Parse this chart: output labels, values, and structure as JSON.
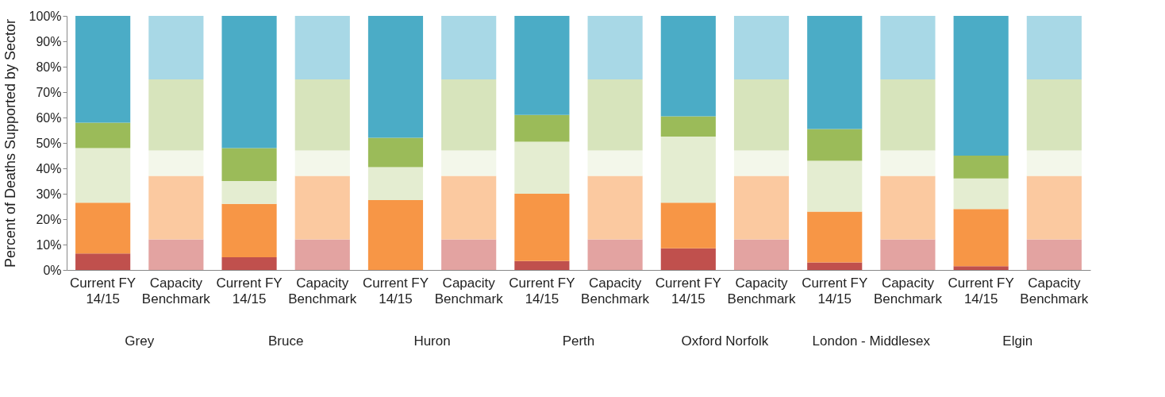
{
  "chart_data": {
    "type": "bar",
    "stacked": true,
    "ylabel": "Percent of Deaths Supported by Sector",
    "categories": [
      "Current FY 14/15",
      "Capacity Benchmark",
      "Current FY 14/15",
      "Capacity Benchmark",
      "Current FY 14/15",
      "Capacity Benchmark",
      "Current FY 14/15",
      "Capacity Benchmark",
      "Current FY 14/15",
      "Capacity Benchmark",
      "Current FY 14/15",
      "Capacity Benchmark",
      "Current FY 14/15",
      "Capacity Benchmark"
    ],
    "series": [
      {
        "colors": [
          "#c0504d",
          "#e3a3a1",
          "#c0504d",
          "#e3a3a1",
          "#c0504d",
          "#e3a3a1",
          "#c0504d",
          "#e3a3a1",
          "#c0504d",
          "#e3a3a1",
          "#c0504d",
          "#e3a3a1",
          "#c0504d",
          "#e3a3a1"
        ],
        "values": [
          6.5,
          12,
          5,
          12,
          0,
          12,
          3.5,
          12,
          8.5,
          12,
          3,
          12,
          1.5,
          12
        ]
      },
      {
        "colors": [
          "#f79646",
          "#fbc9a0",
          "#f79646",
          "#fbc9a0",
          "#f79646",
          "#fbc9a0",
          "#f79646",
          "#fbc9a0",
          "#f79646",
          "#fbc9a0",
          "#f79646",
          "#fbc9a0",
          "#f79646",
          "#fbc9a0"
        ],
        "values": [
          20,
          25,
          21,
          25,
          27.5,
          25,
          26.5,
          25,
          18,
          25,
          20,
          25,
          22.5,
          25
        ]
      },
      {
        "colors": [
          "#e4edd1",
          "#f3f7ea",
          "#e4edd1",
          "#f3f7ea",
          "#e4edd1",
          "#f3f7ea",
          "#e4edd1",
          "#f3f7ea",
          "#e4edd1",
          "#f3f7ea",
          "#e4edd1",
          "#f3f7ea",
          "#e4edd1",
          "#f3f7ea"
        ],
        "values": [
          21.5,
          10,
          9,
          10,
          13,
          10,
          20.5,
          10,
          26,
          10,
          20,
          10,
          12,
          10
        ]
      },
      {
        "colors": [
          "#9bbb59",
          "#d7e4bc",
          "#9bbb59",
          "#d7e4bc",
          "#9bbb59",
          "#d7e4bc",
          "#9bbb59",
          "#d7e4bc",
          "#9bbb59",
          "#d7e4bc",
          "#9bbb59",
          "#d7e4bc",
          "#9bbb59",
          "#d7e4bc"
        ],
        "values": [
          10,
          28,
          13,
          28,
          11.5,
          28,
          10.5,
          28,
          8,
          28,
          12.5,
          28,
          9,
          28
        ]
      },
      {
        "colors": [
          "#4bacc6",
          "#a8d8e6",
          "#4bacc6",
          "#a8d8e6",
          "#4bacc6",
          "#a8d8e6",
          "#4bacc6",
          "#a8d8e6",
          "#4bacc6",
          "#a8d8e6",
          "#4bacc6",
          "#a8d8e6",
          "#4bacc6",
          "#a8d8e6"
        ],
        "values": [
          42,
          25,
          52,
          25,
          48,
          25,
          39,
          25,
          39.5,
          25,
          44.5,
          25,
          55,
          25
        ]
      }
    ],
    "ylim": [
      0,
      100
    ],
    "yticks": [
      {
        "value": 0,
        "label": "0%"
      },
      {
        "value": 10,
        "label": "10%"
      },
      {
        "value": 20,
        "label": "20%"
      },
      {
        "value": 30,
        "label": "30%"
      },
      {
        "value": 40,
        "label": "40%"
      },
      {
        "value": 50,
        "label": "50%"
      },
      {
        "value": 60,
        "label": "60%"
      },
      {
        "value": 70,
        "label": "70%"
      },
      {
        "value": 80,
        "label": "80%"
      },
      {
        "value": 90,
        "label": "90%"
      },
      {
        "value": 100,
        "label": "100%"
      }
    ],
    "annotations": [
      "Grey",
      "Bruce",
      "Huron",
      "Perth",
      "Oxford Norfolk",
      "London - Middlesex",
      "Elgin"
    ]
  }
}
